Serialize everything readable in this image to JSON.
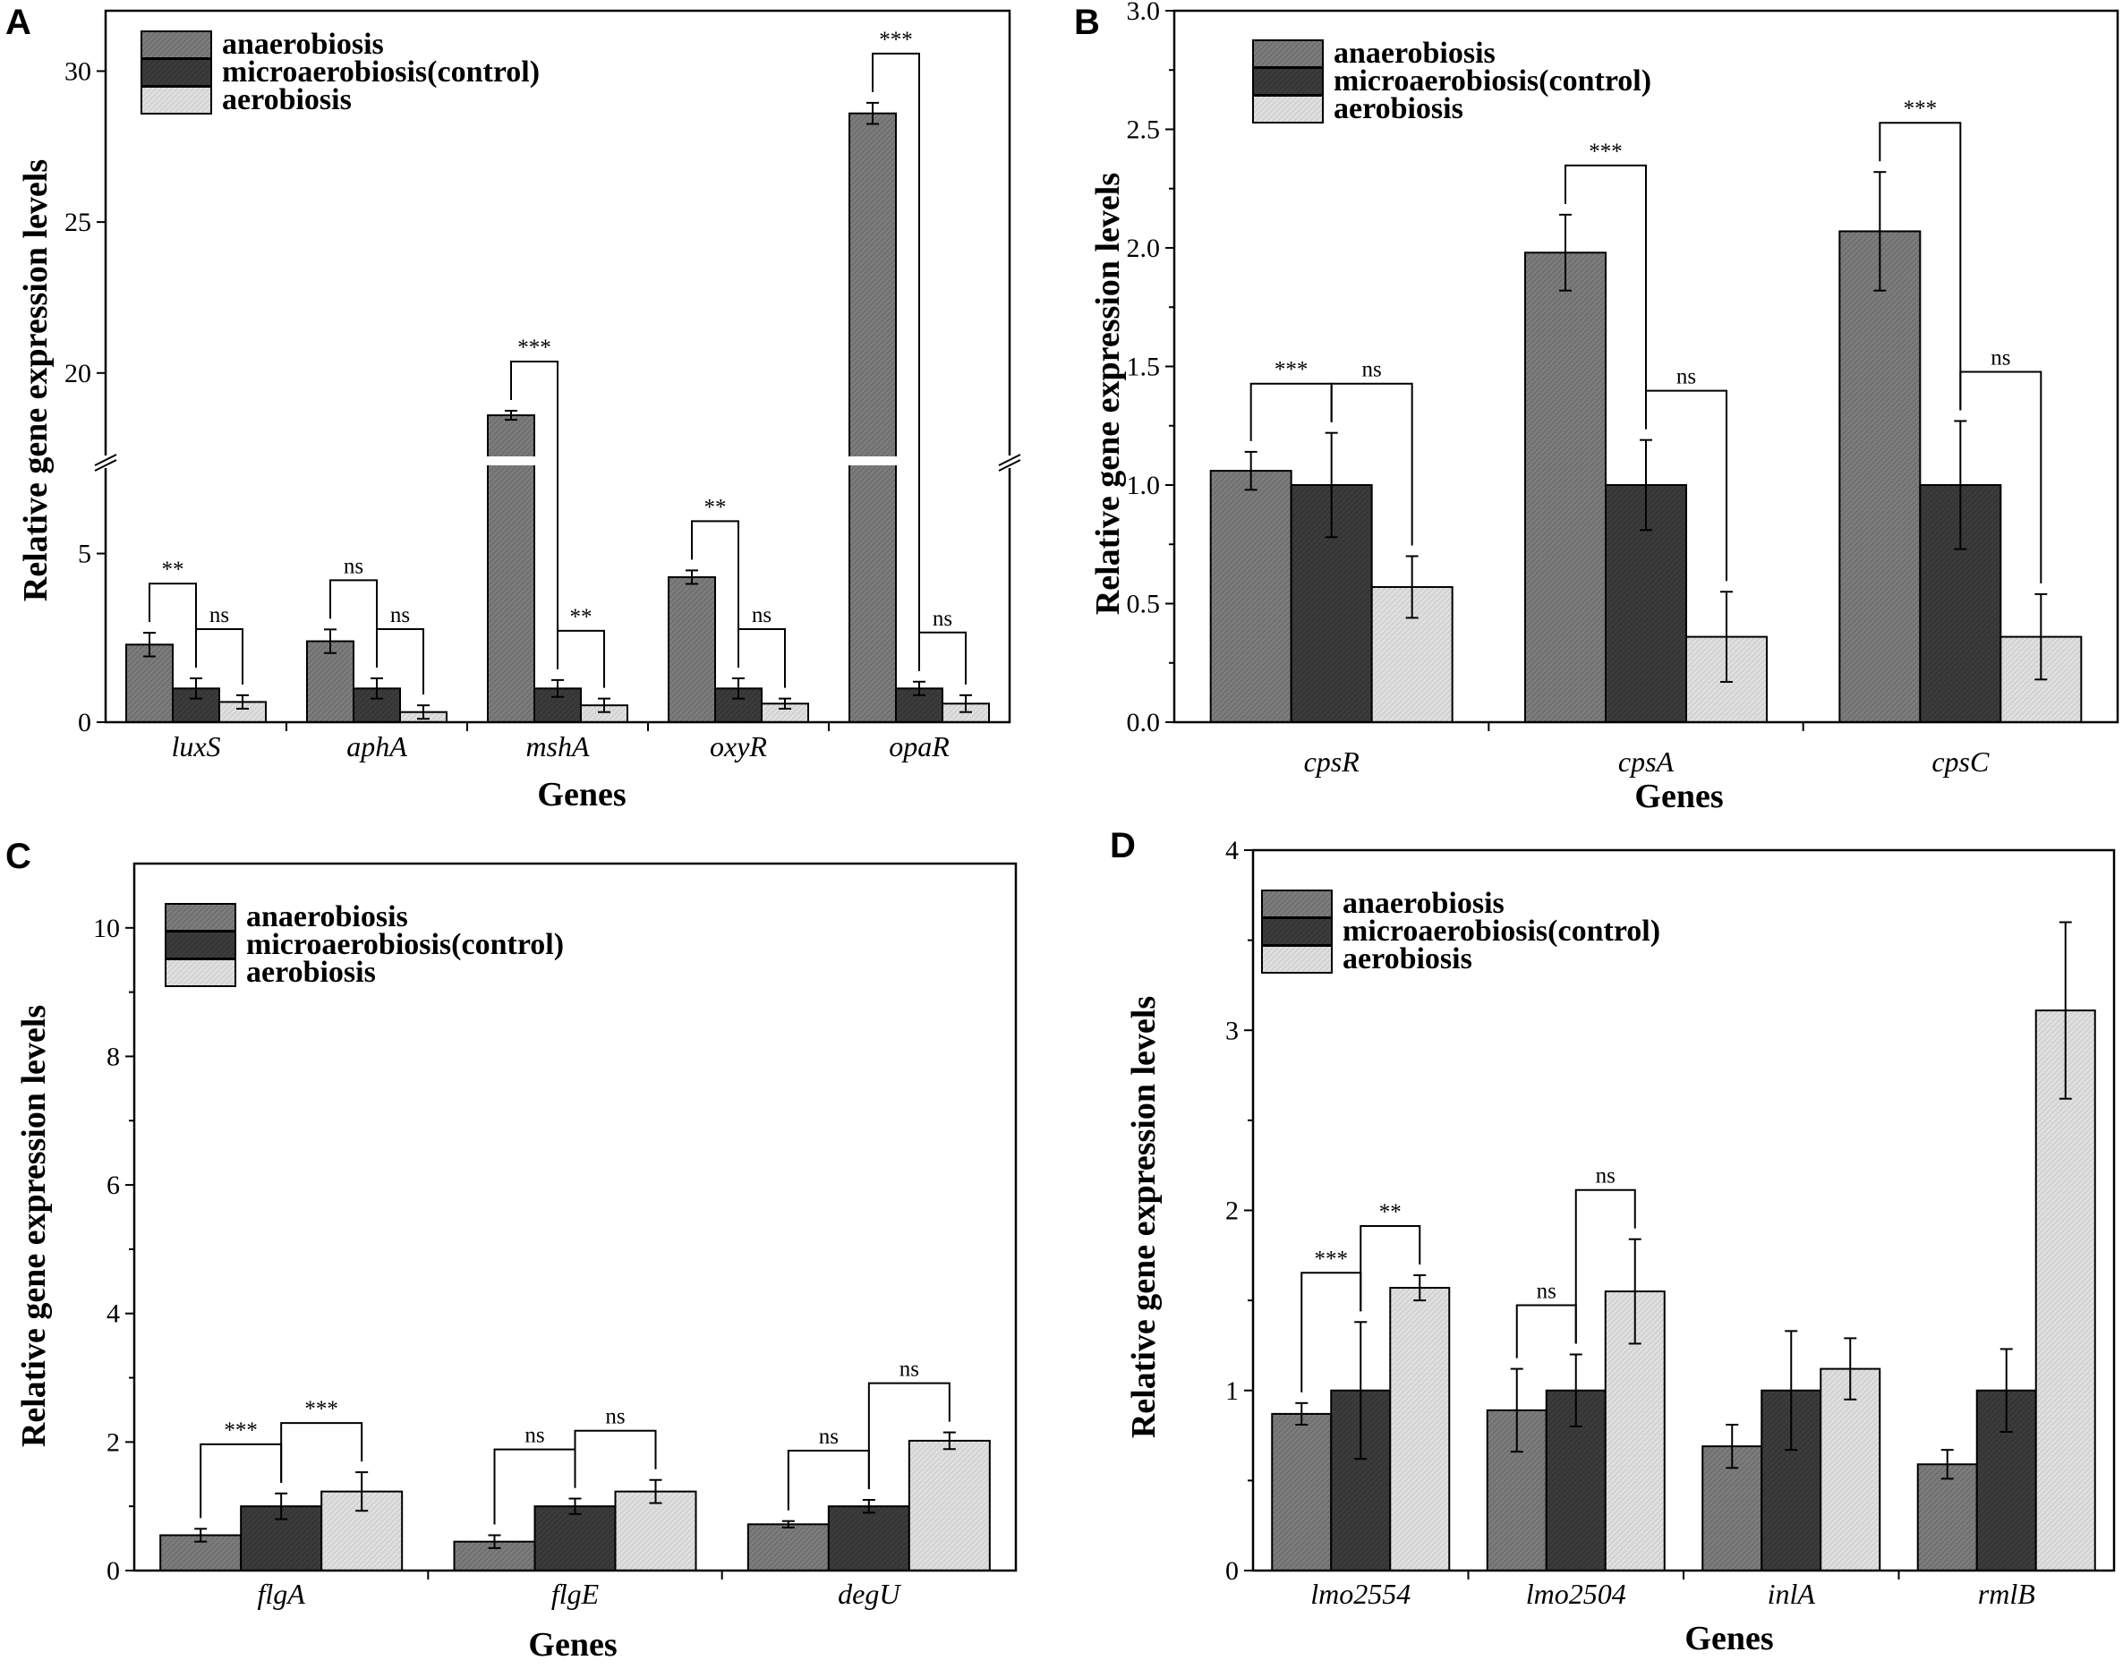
{
  "colors": {
    "anaerobiosis": "#7c7c7c",
    "microaerobiosis": "#3b3b3b",
    "aerobiosis": "#d4d4d4",
    "axis": "#000000"
  },
  "chart_data": [
    {
      "id": "A",
      "panel_label": "A",
      "type": "bar",
      "xlabel": "Genes",
      "ylabel": "Relative gene expression levels",
      "categories": [
        "luxS",
        "aphA",
        "mshA",
        "oxyR",
        "opaR"
      ],
      "series": [
        {
          "name": "anaerobiosis",
          "values": [
            2.3,
            2.4,
            18.6,
            4.3,
            28.6
          ],
          "errors": [
            0.35,
            0.35,
            0.15,
            0.2,
            0.35
          ]
        },
        {
          "name": "microaerobiosis(control)",
          "values": [
            1.0,
            1.0,
            1.0,
            1.0,
            1.0
          ],
          "errors": [
            0.3,
            0.3,
            0.25,
            0.3,
            0.2
          ]
        },
        {
          "name": "aerobiosis",
          "values": [
            0.6,
            0.3,
            0.5,
            0.55,
            0.55
          ],
          "errors": [
            0.2,
            0.2,
            0.2,
            0.15,
            0.25
          ]
        }
      ],
      "y_break": {
        "lower_range": [
          0,
          7.8
        ],
        "upper_range": [
          17,
          32
        ]
      },
      "ylim": [
        0,
        32
      ],
      "yticks": [
        "0",
        "5",
        "20",
        "25",
        "30"
      ],
      "significance": [
        {
          "category": 0,
          "pair": [
            0,
            1
          ],
          "label": "**"
        },
        {
          "category": 0,
          "pair": [
            1,
            2
          ],
          "label": "ns"
        },
        {
          "category": 1,
          "pair": [
            0,
            1
          ],
          "label": "ns"
        },
        {
          "category": 1,
          "pair": [
            1,
            2
          ],
          "label": "ns"
        },
        {
          "category": 2,
          "pair": [
            0,
            1
          ],
          "label": "***"
        },
        {
          "category": 2,
          "pair": [
            1,
            2
          ],
          "label": "**"
        },
        {
          "category": 3,
          "pair": [
            0,
            1
          ],
          "label": "**"
        },
        {
          "category": 3,
          "pair": [
            1,
            2
          ],
          "label": "ns"
        },
        {
          "category": 4,
          "pair": [
            0,
            1
          ],
          "label": "***"
        },
        {
          "category": 4,
          "pair": [
            1,
            2
          ],
          "label": "ns"
        }
      ],
      "legend_position": "top-left"
    },
    {
      "id": "B",
      "panel_label": "B",
      "type": "bar",
      "xlabel": "Genes",
      "ylabel": "Relative gene expression levels",
      "categories": [
        "cpsR",
        "cpsA",
        "cpsC"
      ],
      "series": [
        {
          "name": "anaerobiosis",
          "values": [
            1.06,
            1.98,
            2.07
          ],
          "errors": [
            0.08,
            0.16,
            0.25
          ]
        },
        {
          "name": "microaerobiosis(control)",
          "values": [
            1.0,
            1.0,
            1.0
          ],
          "errors": [
            0.22,
            0.19,
            0.27
          ]
        },
        {
          "name": "aerobiosis",
          "values": [
            0.57,
            0.36,
            0.36
          ],
          "errors": [
            0.13,
            0.19,
            0.18
          ]
        }
      ],
      "ylim": [
        0,
        3.0
      ],
      "yticks": [
        "0.0",
        "0.5",
        "1.0",
        "1.5",
        "2.0",
        "2.5",
        "3.0"
      ],
      "significance": [
        {
          "category": 0,
          "pair": [
            0,
            1
          ],
          "label": "***"
        },
        {
          "category": 0,
          "pair": [
            1,
            2
          ],
          "label": "ns"
        },
        {
          "category": 1,
          "pair": [
            0,
            1
          ],
          "label": "***"
        },
        {
          "category": 1,
          "pair": [
            1,
            2
          ],
          "label": "ns"
        },
        {
          "category": 2,
          "pair": [
            0,
            1
          ],
          "label": "***"
        },
        {
          "category": 2,
          "pair": [
            1,
            2
          ],
          "label": "ns"
        }
      ],
      "legend_position": "top-left"
    },
    {
      "id": "C",
      "panel_label": "C",
      "type": "bar",
      "xlabel": "Genes",
      "ylabel": "Relative gene expression levels",
      "categories": [
        "flgA",
        "flgE",
        "degU"
      ],
      "series": [
        {
          "name": "anaerobiosis",
          "values": [
            0.55,
            0.45,
            0.72
          ],
          "errors": [
            0.1,
            0.1,
            0.05
          ]
        },
        {
          "name": "microaerobiosis(control)",
          "values": [
            1.0,
            1.0,
            1.0
          ],
          "errors": [
            0.2,
            0.12,
            0.1
          ]
        },
        {
          "name": "aerobiosis",
          "values": [
            1.23,
            1.23,
            2.02
          ],
          "errors": [
            0.3,
            0.18,
            0.13
          ]
        }
      ],
      "ylim": [
        0,
        11
      ],
      "yticks": [
        "0",
        "2",
        "4",
        "6",
        "8",
        "10"
      ],
      "significance": [
        {
          "category": 0,
          "pair": [
            0,
            1
          ],
          "label": "***"
        },
        {
          "category": 0,
          "pair": [
            1,
            2
          ],
          "label": "***"
        },
        {
          "category": 1,
          "pair": [
            0,
            1
          ],
          "label": "ns"
        },
        {
          "category": 1,
          "pair": [
            1,
            2
          ],
          "label": "ns"
        },
        {
          "category": 2,
          "pair": [
            0,
            1
          ],
          "label": "ns"
        },
        {
          "category": 2,
          "pair": [
            1,
            2
          ],
          "label": "ns"
        }
      ],
      "legend_position": "top-left"
    },
    {
      "id": "D",
      "panel_label": "D",
      "type": "bar",
      "xlabel": "Genes",
      "ylabel": "Relative gene expression levels",
      "categories": [
        "lmo2554",
        "lmo2504",
        "inlA",
        "rmlB"
      ],
      "series": [
        {
          "name": "anaerobiosis",
          "values": [
            0.87,
            0.89,
            0.69,
            0.59
          ],
          "errors": [
            0.06,
            0.23,
            0.12,
            0.08
          ]
        },
        {
          "name": "microaerobiosis(control)",
          "values": [
            1.0,
            1.0,
            1.0,
            1.0
          ],
          "errors": [
            0.38,
            0.2,
            0.33,
            0.23
          ]
        },
        {
          "name": "aerobiosis",
          "values": [
            1.57,
            1.55,
            1.12,
            3.11
          ],
          "errors": [
            0.07,
            0.29,
            0.17,
            0.49
          ]
        }
      ],
      "ylim": [
        0,
        4
      ],
      "yticks": [
        "0",
        "1",
        "2",
        "3",
        "4"
      ],
      "significance": [
        {
          "category": 0,
          "pair": [
            0,
            1
          ],
          "label": "***"
        },
        {
          "category": 0,
          "pair": [
            1,
            2
          ],
          "label": "**"
        },
        {
          "category": 1,
          "pair": [
            0,
            1
          ],
          "label": "ns"
        },
        {
          "category": 1,
          "pair": [
            1,
            2
          ],
          "label": "ns"
        }
      ],
      "legend_position": "top-left"
    }
  ]
}
